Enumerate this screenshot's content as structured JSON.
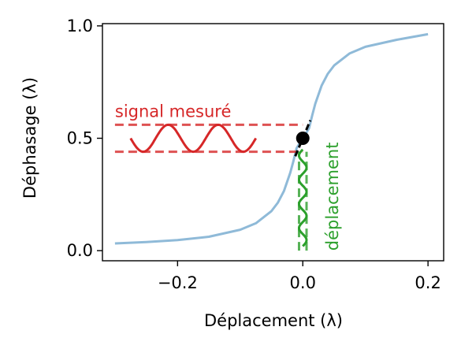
{
  "chart_data": {
    "type": "line",
    "title": "",
    "xlabel": "Déplacement (λ)",
    "ylabel": "Déphasage (λ)",
    "xlim": [
      -0.32,
      0.225
    ],
    "ylim": [
      -0.045,
      1.01
    ],
    "x_ticks": [
      {
        "value": -0.2,
        "label": "−0.2"
      },
      {
        "value": 0.0,
        "label": "0.0"
      },
      {
        "value": 0.2,
        "label": "0.2"
      }
    ],
    "y_ticks": [
      {
        "value": 0.0,
        "label": "0.0"
      },
      {
        "value": 0.5,
        "label": "0.5"
      },
      {
        "value": 1.0,
        "label": "1.0"
      }
    ],
    "grid": false,
    "series": [
      {
        "role": "response-curve",
        "color": "#8fbad8",
        "x": [
          -0.3,
          -0.25,
          -0.2,
          -0.15,
          -0.1,
          -0.075,
          -0.05,
          -0.04,
          -0.03,
          -0.02,
          -0.015,
          -0.01,
          -0.005,
          0.0,
          0.005,
          0.01,
          0.015,
          0.02,
          0.03,
          0.04,
          0.05,
          0.075,
          0.1,
          0.15,
          0.2
        ],
        "y": [
          0.032,
          0.038,
          0.047,
          0.062,
          0.093,
          0.122,
          0.176,
          0.213,
          0.266,
          0.346,
          0.398,
          0.455,
          0.479,
          0.5,
          0.521,
          0.545,
          0.602,
          0.654,
          0.734,
          0.787,
          0.824,
          0.878,
          0.907,
          0.938,
          0.963
        ]
      }
    ],
    "operating_point": {
      "x": 0.0,
      "y": 0.5,
      "color": "#000000"
    },
    "tangent_segment": {
      "x": [
        -0.012,
        0.012
      ],
      "y": [
        0.42,
        0.58
      ],
      "color": "#000000"
    },
    "measured_signal": {
      "label": "signal mesuré",
      "color": "#d62728",
      "center_y": 0.5,
      "amplitude": 0.06,
      "x_start": -0.275,
      "x_end": -0.075,
      "cycles": 2.5,
      "bounds_x": [
        -0.3,
        0.0
      ]
    },
    "displacement_signal": {
      "label": "déplacement",
      "color": "#2ca02c",
      "center_x": 0.0,
      "amplitude": 0.006,
      "y_start": 0.02,
      "y_end": 0.45,
      "cycles": 4,
      "bounds_y": [
        0.0,
        0.44
      ]
    }
  }
}
